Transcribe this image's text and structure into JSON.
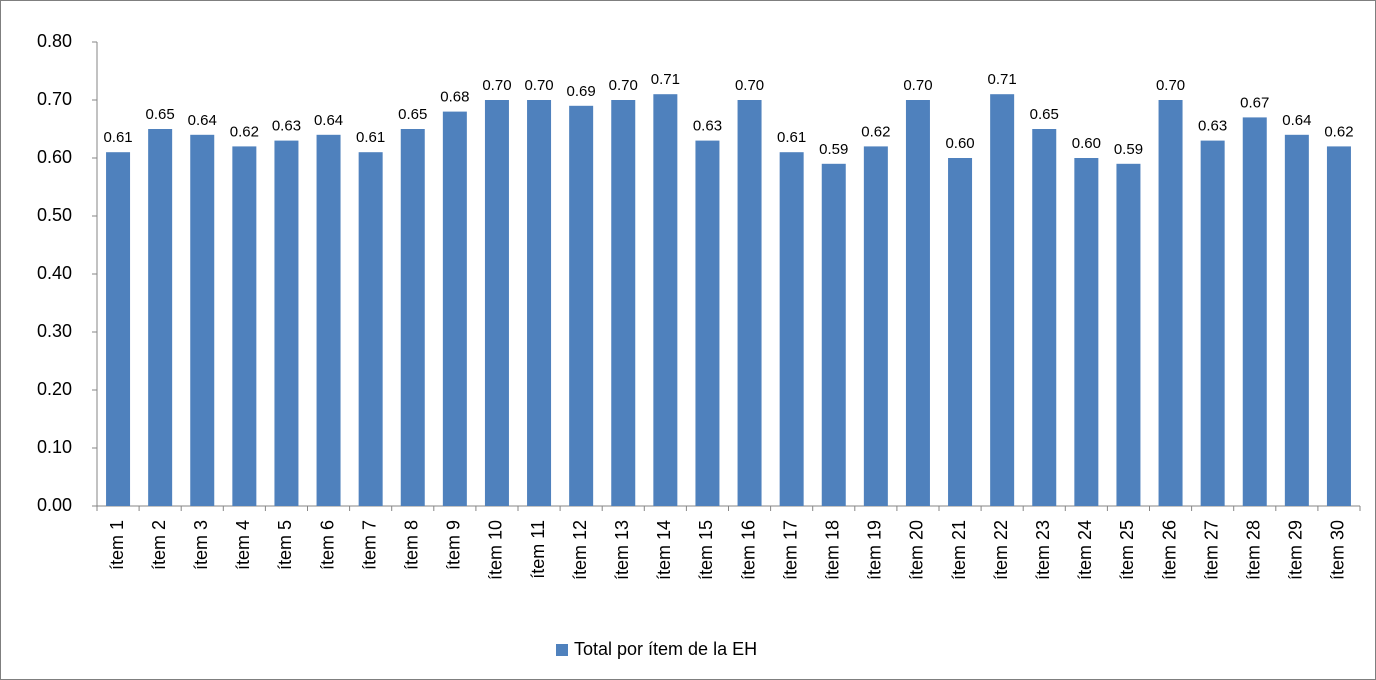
{
  "chart_data": {
    "type": "bar",
    "categories": [
      "ítem 1",
      "ítem 2",
      "ítem 3",
      "ítem 4",
      "ítem 5",
      "ítem 6",
      "ítem 7",
      "ítem 8",
      "ítem 9",
      "ítem 10",
      "ítem 11",
      "ítem 12",
      "ítem 13",
      "ítem 14",
      "ítem 15",
      "ítem 16",
      "ítem 17",
      "ítem 18",
      "ítem 19",
      "ítem 20",
      "ítem 21",
      "ítem 22",
      "ítem 23",
      "ítem 24",
      "ítem 25",
      "ítem 26",
      "ítem 27",
      "ítem 28",
      "ítem 29",
      "ítem 30"
    ],
    "series": [
      {
        "name": "Total por ítem de la EH",
        "color": "#4f81bd",
        "values": [
          0.61,
          0.65,
          0.64,
          0.62,
          0.63,
          0.64,
          0.61,
          0.65,
          0.68,
          0.7,
          0.7,
          0.69,
          0.7,
          0.71,
          0.63,
          0.7,
          0.61,
          0.59,
          0.62,
          0.7,
          0.6,
          0.71,
          0.65,
          0.6,
          0.59,
          0.7,
          0.63,
          0.67,
          0.64,
          0.62
        ],
        "value_labels": [
          "0.61",
          "0.65",
          "0.64",
          "0.62",
          "0.63",
          "0.64",
          "0.61",
          "0.65",
          "0.68",
          "0.70",
          "0.70",
          "0.69",
          "0.70",
          "0.71",
          "0.63",
          "0.70",
          "0.61",
          "0.59",
          "0.62",
          "0.70",
          "0.60",
          "0.71",
          "0.65",
          "0.60",
          "0.59",
          "0.70",
          "0.63",
          "0.67",
          "0.64",
          "0.62"
        ]
      }
    ],
    "ylim": [
      0,
      0.8
    ],
    "yticks": [
      {
        "value": 0,
        "label": "0.00"
      },
      {
        "value": 0.1,
        "label": "0.10"
      },
      {
        "value": 0.2,
        "label": "0.20"
      },
      {
        "value": 0.3,
        "label": "0.30"
      },
      {
        "value": 0.4,
        "label": "0.40"
      },
      {
        "value": 0.5,
        "label": "0.50"
      },
      {
        "value": 0.6,
        "label": "0.60"
      },
      {
        "value": 0.7,
        "label": "0.70"
      },
      {
        "value": 0.8,
        "label": "0.80"
      }
    ],
    "grid": false,
    "legend": "bottom"
  }
}
